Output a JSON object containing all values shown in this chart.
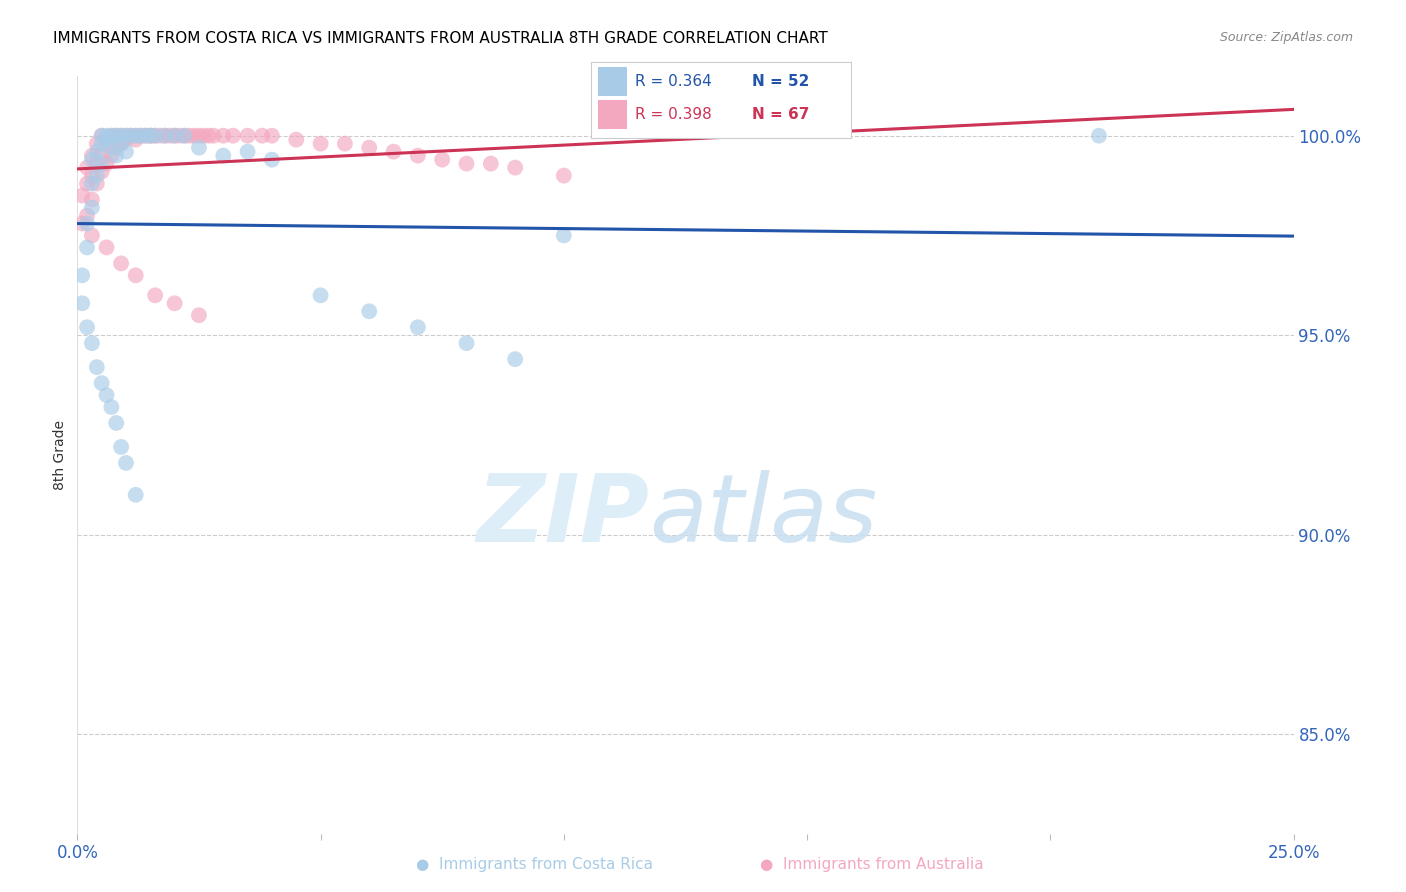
{
  "title": "IMMIGRANTS FROM COSTA RICA VS IMMIGRANTS FROM AUSTRALIA 8TH GRADE CORRELATION CHART",
  "source": "Source: ZipAtlas.com",
  "ylabel": "8th Grade",
  "yticks_labels": [
    "100.0%",
    "95.0%",
    "90.0%",
    "85.0%"
  ],
  "ytick_vals": [
    1.0,
    0.95,
    0.9,
    0.85
  ],
  "xlim": [
    0.0,
    0.25
  ],
  "ylim": [
    0.825,
    1.015
  ],
  "legend_r1": "0.364",
  "legend_n1": "52",
  "legend_r2": "0.398",
  "legend_n2": "67",
  "color_blue": "#a8cce8",
  "color_pink": "#f4a8c0",
  "line_blue": "#2255aa",
  "line_pink": "#cc3355",
  "cr_x": [
    0.001,
    0.002,
    0.002,
    0.003,
    0.003,
    0.003,
    0.004,
    0.004,
    0.005,
    0.005,
    0.005,
    0.006,
    0.006,
    0.007,
    0.007,
    0.008,
    0.008,
    0.009,
    0.009,
    0.01,
    0.01,
    0.011,
    0.012,
    0.013,
    0.014,
    0.015,
    0.016,
    0.018,
    0.02,
    0.022,
    0.025,
    0.03,
    0.035,
    0.04,
    0.05,
    0.06,
    0.07,
    0.08,
    0.09,
    0.1,
    0.001,
    0.002,
    0.003,
    0.004,
    0.005,
    0.006,
    0.007,
    0.008,
    0.009,
    0.01,
    0.012,
    0.21
  ],
  "cr_y": [
    0.965,
    0.972,
    0.978,
    0.982,
    0.988,
    0.994,
    0.99,
    0.996,
    0.998,
    1.0,
    0.993,
    0.999,
    1.0,
    0.997,
    1.0,
    0.995,
    1.0,
    0.998,
    1.0,
    0.996,
    1.0,
    1.0,
    1.0,
    1.0,
    1.0,
    1.0,
    1.0,
    1.0,
    1.0,
    1.0,
    0.997,
    0.995,
    0.996,
    0.994,
    0.96,
    0.956,
    0.952,
    0.948,
    0.944,
    0.975,
    0.958,
    0.952,
    0.948,
    0.942,
    0.938,
    0.935,
    0.932,
    0.928,
    0.922,
    0.918,
    0.91,
    1.0
  ],
  "au_x": [
    0.001,
    0.001,
    0.002,
    0.002,
    0.002,
    0.003,
    0.003,
    0.003,
    0.004,
    0.004,
    0.004,
    0.005,
    0.005,
    0.005,
    0.006,
    0.006,
    0.007,
    0.007,
    0.008,
    0.008,
    0.009,
    0.009,
    0.01,
    0.01,
    0.011,
    0.012,
    0.012,
    0.013,
    0.014,
    0.015,
    0.015,
    0.016,
    0.017,
    0.018,
    0.019,
    0.02,
    0.021,
    0.022,
    0.023,
    0.024,
    0.025,
    0.026,
    0.027,
    0.028,
    0.03,
    0.032,
    0.035,
    0.038,
    0.04,
    0.045,
    0.05,
    0.055,
    0.06,
    0.065,
    0.07,
    0.075,
    0.08,
    0.085,
    0.09,
    0.1,
    0.003,
    0.006,
    0.009,
    0.012,
    0.016,
    0.02,
    0.025
  ],
  "au_y": [
    0.978,
    0.985,
    0.98,
    0.988,
    0.992,
    0.984,
    0.99,
    0.995,
    0.988,
    0.993,
    0.998,
    0.991,
    0.995,
    1.0,
    0.993,
    0.998,
    0.995,
    1.0,
    0.997,
    1.0,
    0.998,
    1.0,
    0.999,
    1.0,
    1.0,
    0.999,
    1.0,
    1.0,
    1.0,
    1.0,
    1.0,
    1.0,
    1.0,
    1.0,
    1.0,
    1.0,
    1.0,
    1.0,
    1.0,
    1.0,
    1.0,
    1.0,
    1.0,
    1.0,
    1.0,
    1.0,
    1.0,
    1.0,
    1.0,
    0.999,
    0.998,
    0.998,
    0.997,
    0.996,
    0.995,
    0.994,
    0.993,
    0.993,
    0.992,
    0.99,
    0.975,
    0.972,
    0.968,
    0.965,
    0.96,
    0.958,
    0.955
  ]
}
